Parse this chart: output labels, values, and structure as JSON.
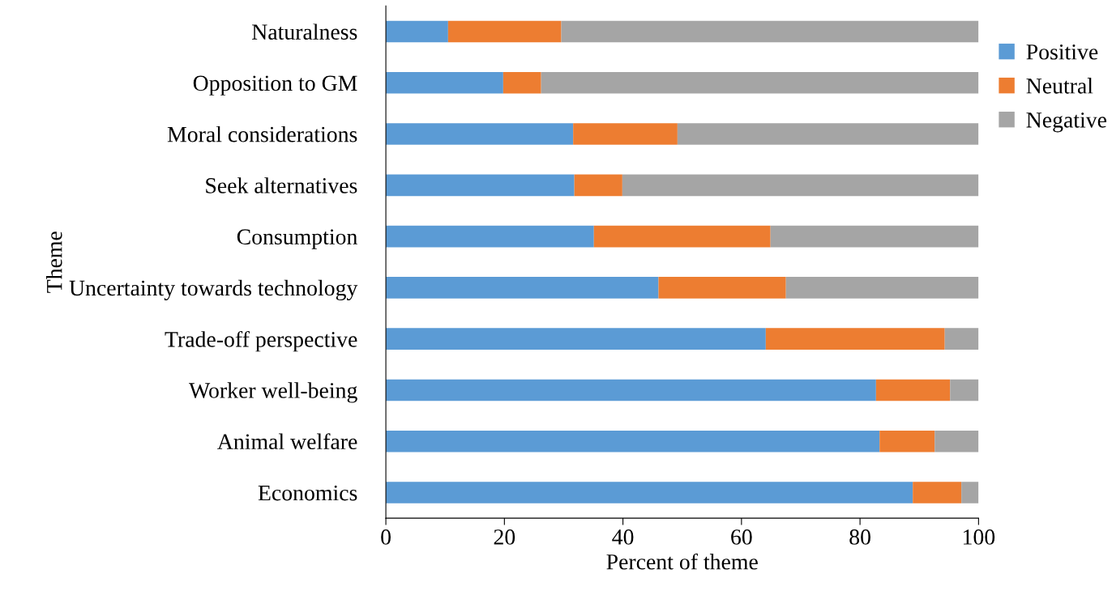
{
  "chart_data": {
    "type": "bar",
    "orientation": "horizontal",
    "stacked": true,
    "xlabel": "Percent of theme",
    "ylabel": "Theme",
    "categories": [
      "Naturalness",
      "Opposition to GM",
      "Moral considerations",
      "Seek alternatives",
      "Consumption",
      "Uncertainty towards technology",
      "Trade-off perspective",
      "Worker well-being",
      "Animal welfare",
      "Economics"
    ],
    "series": [
      {
        "name": "Positive",
        "color": "#5b9bd5",
        "values": [
          10.5,
          19.8,
          31.6,
          31.8,
          35.1,
          46.0,
          64.1,
          82.7,
          83.3,
          88.9
        ]
      },
      {
        "name": "Neutral",
        "color": "#ed7d31",
        "values": [
          19.1,
          6.4,
          17.6,
          8.1,
          29.8,
          21.5,
          30.2,
          12.5,
          9.3,
          8.2
        ]
      },
      {
        "name": "Negative",
        "color": "#a5a5a5",
        "values": [
          70.4,
          73.8,
          50.8,
          60.1,
          35.1,
          32.5,
          5.7,
          4.8,
          7.4,
          2.9
        ]
      }
    ],
    "xlim": [
      0,
      100
    ],
    "xticks": [
      0,
      20,
      40,
      60,
      80,
      100
    ],
    "grid": false,
    "legend": "right"
  }
}
